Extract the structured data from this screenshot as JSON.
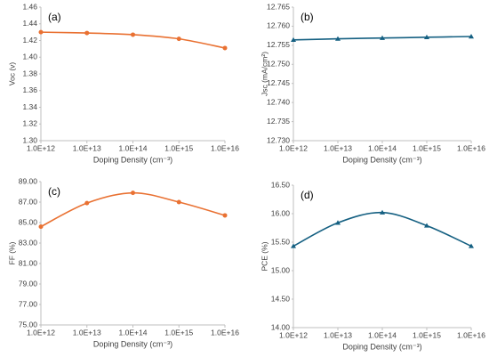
{
  "chart_data": [
    {
      "type": "line",
      "panel_label": "(a)",
      "xlabel": "Doping Density (cm⁻³)",
      "ylabel": "Voc (v)",
      "x": [
        1000000000000.0,
        10000000000000.0,
        100000000000000.0,
        1000000000000000.0,
        1e+16
      ],
      "xscale": "log",
      "xlim": [
        1000000000000.0,
        1e+16
      ],
      "xticks": [
        {
          "value": 1000000000000.0,
          "label": "1.0E+12"
        },
        {
          "value": 10000000000000.0,
          "label": "1.0E+13"
        },
        {
          "value": 100000000000000.0,
          "label": "1.0E+14"
        },
        {
          "value": 1000000000000000.0,
          "label": "1.0E+15"
        },
        {
          "value": 1e+16,
          "label": "1.0E+16"
        }
      ],
      "ylim": [
        1.3,
        1.46
      ],
      "yticks": [
        {
          "value": 1.3,
          "label": "1.30"
        },
        1.32,
        1.34,
        1.36,
        1.38,
        {
          "value": 1.4,
          "label": "1.40"
        },
        1.42,
        1.44,
        1.46
      ],
      "grid": false,
      "marker": "circle",
      "series": [
        {
          "color": "#e97132",
          "values": [
            1.43,
            1.429,
            1.427,
            1.422,
            1.411
          ]
        }
      ]
    },
    {
      "type": "line",
      "panel_label": "(b)",
      "xlabel": "Doping Density (cm⁻³)",
      "ylabel": "Jsc (mA/cm²)",
      "x": [
        1000000000000.0,
        10000000000000.0,
        100000000000000.0,
        1000000000000000.0,
        1e+16
      ],
      "xscale": "log",
      "xlim": [
        1000000000000.0,
        1e+16
      ],
      "xticks": [
        {
          "value": 1000000000000.0,
          "label": "1.0E+12"
        },
        {
          "value": 10000000000000.0,
          "label": "1.0E+13"
        },
        {
          "value": 100000000000000.0,
          "label": "1.0E+14"
        },
        {
          "value": 1000000000000000.0,
          "label": "1.0E+15"
        },
        {
          "value": 1e+16,
          "label": "1.0E+16"
        }
      ],
      "ylim": [
        12.73,
        12.765
      ],
      "yticks": [
        {
          "value": 12.73,
          "label": "12.730"
        },
        12.735,
        {
          "value": 12.74,
          "label": "12.740"
        },
        12.745,
        {
          "value": 12.75,
          "label": "12.750"
        },
        12.755,
        {
          "value": 12.76,
          "label": "12.760"
        },
        12.765
      ],
      "grid": false,
      "marker": "triangle",
      "series": [
        {
          "color": "#156082",
          "values": [
            12.7564,
            12.7567,
            12.7569,
            12.7571,
            12.7573
          ]
        }
      ]
    },
    {
      "type": "line",
      "panel_label": "(c)",
      "xlabel": "Doping Density (cm⁻³)",
      "ylabel": "FF (%)",
      "x": [
        1000000000000.0,
        10000000000000.0,
        100000000000000.0,
        1000000000000000.0,
        1e+16
      ],
      "xscale": "log",
      "xlim": [
        1000000000000.0,
        1e+16
      ],
      "xticks": [
        {
          "value": 1000000000000.0,
          "label": "1.0E+12"
        },
        {
          "value": 10000000000000.0,
          "label": "1.0E+13"
        },
        {
          "value": 100000000000000.0,
          "label": "1.0E+14"
        },
        {
          "value": 1000000000000000.0,
          "label": "1.0E+15"
        },
        {
          "value": 1e+16,
          "label": "1.0E+16"
        }
      ],
      "ylim": [
        75,
        89
      ],
      "yticks": [
        {
          "value": 75,
          "label": "75.00"
        },
        {
          "value": 77,
          "label": "77.00"
        },
        {
          "value": 79,
          "label": "79.00"
        },
        {
          "value": 81,
          "label": "81.00"
        },
        {
          "value": 83,
          "label": "83.00"
        },
        {
          "value": 85,
          "label": "85.00"
        },
        {
          "value": 87,
          "label": "87.00"
        },
        {
          "value": 89,
          "label": "89.00"
        }
      ],
      "grid": false,
      "marker": "circle",
      "series": [
        {
          "color": "#e97132",
          "values": [
            84.6,
            86.9,
            87.9,
            87.0,
            85.7
          ]
        }
      ]
    },
    {
      "type": "line",
      "panel_label": "(d)",
      "xlabel": "Doping Density (cm⁻³)",
      "ylabel": "PCE (%)",
      "x": [
        1000000000000.0,
        10000000000000.0,
        100000000000000.0,
        1000000000000000.0,
        1e+16
      ],
      "xscale": "log",
      "xlim": [
        1000000000000.0,
        1e+16
      ],
      "xticks": [
        {
          "value": 1000000000000.0,
          "label": "1.0E+12"
        },
        {
          "value": 10000000000000.0,
          "label": "1.0E+13"
        },
        {
          "value": 100000000000000.0,
          "label": "1.0E+14"
        },
        {
          "value": 1000000000000000.0,
          "label": "1.0E+15"
        },
        {
          "value": 1e+16,
          "label": "1.0E+16"
        }
      ],
      "ylim": [
        14,
        16.5
      ],
      "yticks": [
        {
          "value": 14,
          "label": "14.00"
        },
        {
          "value": 14.5,
          "label": "14.50"
        },
        {
          "value": 15,
          "label": "15.00"
        },
        {
          "value": 15.5,
          "label": "15.50"
        },
        {
          "value": 16,
          "label": "16.00"
        },
        {
          "value": 16.5,
          "label": "16.50"
        }
      ],
      "grid": false,
      "marker": "triangle",
      "series": [
        {
          "color": "#156082",
          "values": [
            15.43,
            15.84,
            16.02,
            15.79,
            15.43
          ]
        }
      ]
    }
  ]
}
